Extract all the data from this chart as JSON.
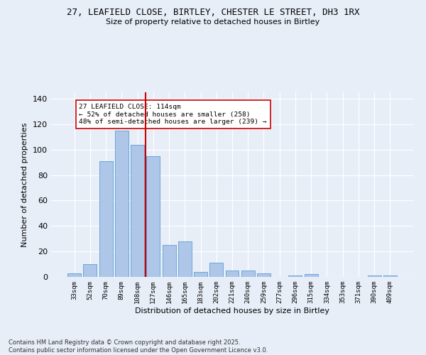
{
  "title1": "27, LEAFIELD CLOSE, BIRTLEY, CHESTER LE STREET, DH3 1RX",
  "title2": "Size of property relative to detached houses in Birtley",
  "xlabel": "Distribution of detached houses by size in Birtley",
  "ylabel": "Number of detached properties",
  "categories": [
    "33sqm",
    "52sqm",
    "70sqm",
    "89sqm",
    "108sqm",
    "127sqm",
    "146sqm",
    "165sqm",
    "183sqm",
    "202sqm",
    "221sqm",
    "240sqm",
    "259sqm",
    "277sqm",
    "296sqm",
    "315sqm",
    "334sqm",
    "353sqm",
    "371sqm",
    "390sqm",
    "409sqm"
  ],
  "values": [
    3,
    10,
    91,
    115,
    104,
    95,
    25,
    28,
    4,
    11,
    5,
    5,
    3,
    0,
    1,
    2,
    0,
    0,
    0,
    1,
    1
  ],
  "bar_color": "#aec6e8",
  "bar_edge_color": "#5a9fd4",
  "vline_x": 4.5,
  "vline_color": "#cc0000",
  "annotation_text": "27 LEAFIELD CLOSE: 114sqm\n← 52% of detached houses are smaller (258)\n48% of semi-detached houses are larger (239) →",
  "annotation_box_color": "#ffffff",
  "annotation_box_edge": "#cc0000",
  "footer": "Contains HM Land Registry data © Crown copyright and database right 2025.\nContains public sector information licensed under the Open Government Licence v3.0.",
  "bg_color": "#e8eef8",
  "plot_bg_color": "#e8eef8",
  "ylim": [
    0,
    145
  ],
  "yticks": [
    0,
    20,
    40,
    60,
    80,
    100,
    120,
    140
  ]
}
